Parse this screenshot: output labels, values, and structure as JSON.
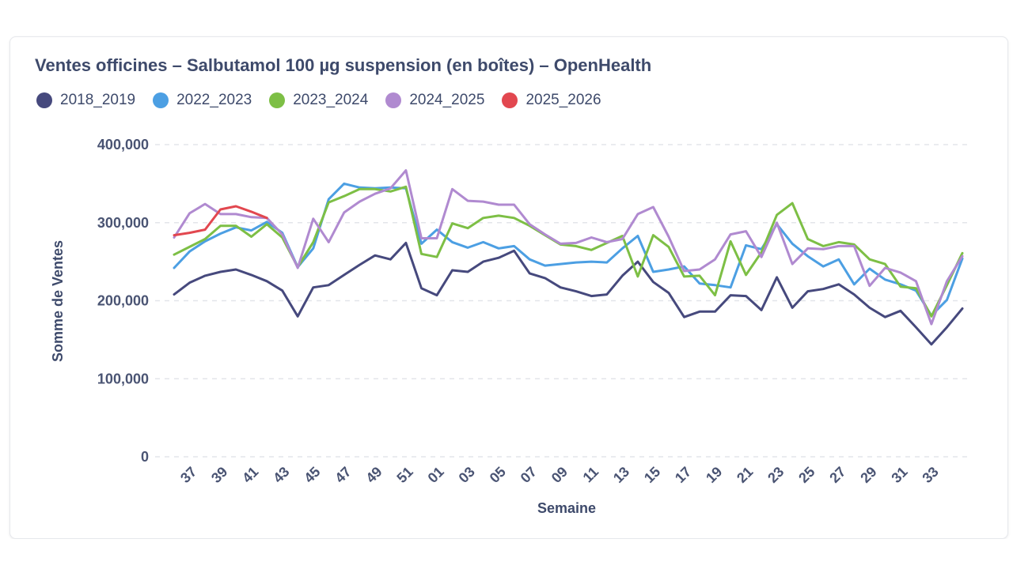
{
  "header": {
    "title": "Ventes officines – Salbutamol 100 µg suspension (en boîtes) – OpenHealth"
  },
  "chart_data": {
    "type": "line",
    "title": "Ventes officines – Salbutamol 100 µg suspension (en boîtes) – OpenHealth",
    "xlabel": "Semaine",
    "ylabel": "Somme de Ventes",
    "ylim": [
      0,
      400000
    ],
    "yticks": [
      "0",
      "100,000",
      "200,000",
      "300,000",
      "400,000"
    ],
    "yticks_values": [
      0,
      100000,
      200000,
      300000,
      400000
    ],
    "grid": true,
    "legend_position": "top-left",
    "x": [
      "36",
      "37",
      "38",
      "39",
      "40",
      "41",
      "42",
      "43",
      "44",
      "45",
      "46",
      "47",
      "48",
      "49",
      "50",
      "51",
      "52",
      "01",
      "02",
      "03",
      "04",
      "05",
      "06",
      "07",
      "08",
      "09",
      "10",
      "11",
      "12",
      "13",
      "14",
      "15",
      "16",
      "17",
      "18",
      "19",
      "20",
      "21",
      "22",
      "23",
      "24",
      "25",
      "26",
      "27",
      "28",
      "29",
      "30",
      "31",
      "32",
      "33",
      "34",
      "35"
    ],
    "x_tick_labels": [
      "37",
      "39",
      "41",
      "43",
      "45",
      "47",
      "49",
      "51",
      "01",
      "03",
      "05",
      "07",
      "09",
      "11",
      "13",
      "15",
      "17",
      "19",
      "21",
      "23",
      "25",
      "27",
      "29",
      "31",
      "33"
    ],
    "series": [
      {
        "name": "2018_2019",
        "color": "#46497d",
        "values": [
          208000,
          223000,
          232000,
          237000,
          240000,
          233000,
          225000,
          213000,
          180000,
          217000,
          220000,
          233000,
          246000,
          258000,
          253000,
          274000,
          216000,
          207000,
          239000,
          237000,
          250000,
          255000,
          264000,
          235000,
          229000,
          217000,
          212000,
          206000,
          208000,
          232000,
          250000,
          224000,
          210000,
          179000,
          186000,
          186000,
          207000,
          206000,
          188000,
          230000,
          191000,
          212000,
          215000,
          221000,
          208000,
          191000,
          179000,
          187000,
          166000,
          144000,
          166000,
          190000
        ]
      },
      {
        "name": "2022_2023",
        "color": "#4c9fe3",
        "values": [
          242000,
          263000,
          276000,
          286000,
          294000,
          290000,
          301000,
          287000,
          243000,
          267000,
          330000,
          350000,
          345000,
          344000,
          345000,
          344000,
          273000,
          291000,
          275000,
          268000,
          275000,
          267000,
          270000,
          253000,
          245000,
          247000,
          249000,
          250000,
          249000,
          267000,
          283000,
          237000,
          240000,
          244000,
          222000,
          220000,
          217000,
          271000,
          266000,
          298000,
          273000,
          257000,
          244000,
          253000,
          221000,
          241000,
          227000,
          221000,
          213000,
          181000,
          201000,
          254000
        ]
      },
      {
        "name": "2023_2024",
        "color": "#7dbf45",
        "values": [
          259000,
          269000,
          279000,
          296000,
          296000,
          282000,
          298000,
          281000,
          243000,
          275000,
          326000,
          334000,
          343000,
          343000,
          340000,
          346000,
          260000,
          256000,
          299000,
          293000,
          306000,
          309000,
          306000,
          296000,
          284000,
          272000,
          270000,
          265000,
          274000,
          283000,
          231000,
          284000,
          269000,
          231000,
          232000,
          207000,
          276000,
          233000,
          262000,
          310000,
          325000,
          279000,
          270000,
          275000,
          272000,
          253000,
          247000,
          218000,
          216000,
          180000,
          220000,
          261000
        ]
      },
      {
        "name": "2024_2025",
        "color": "#b08ad0",
        "values": [
          281000,
          312000,
          324000,
          311000,
          311000,
          307000,
          306000,
          285000,
          242000,
          305000,
          275000,
          313000,
          327000,
          337000,
          344000,
          367000,
          280000,
          280000,
          343000,
          328000,
          327000,
          323000,
          323000,
          298000,
          285000,
          273000,
          274000,
          281000,
          275000,
          279000,
          311000,
          320000,
          282000,
          238000,
          240000,
          253000,
          285000,
          289000,
          256000,
          300000,
          247000,
          267000,
          266000,
          270000,
          270000,
          219000,
          242000,
          236000,
          225000,
          170000,
          225000,
          257000
        ]
      },
      {
        "name": "2025_2026",
        "color": "#e2474f",
        "values": [
          284000,
          287000,
          291000,
          317000,
          321000,
          314000,
          306000,
          null,
          null,
          null,
          null,
          null,
          null,
          null,
          null,
          null,
          null,
          null,
          null,
          null,
          null,
          null,
          null,
          null,
          null,
          null,
          null,
          null,
          null,
          null,
          null,
          null,
          null,
          null,
          null,
          null,
          null,
          null,
          null,
          null,
          null,
          null,
          null,
          null,
          null,
          null,
          null,
          null,
          null,
          null,
          null,
          null
        ]
      }
    ]
  }
}
